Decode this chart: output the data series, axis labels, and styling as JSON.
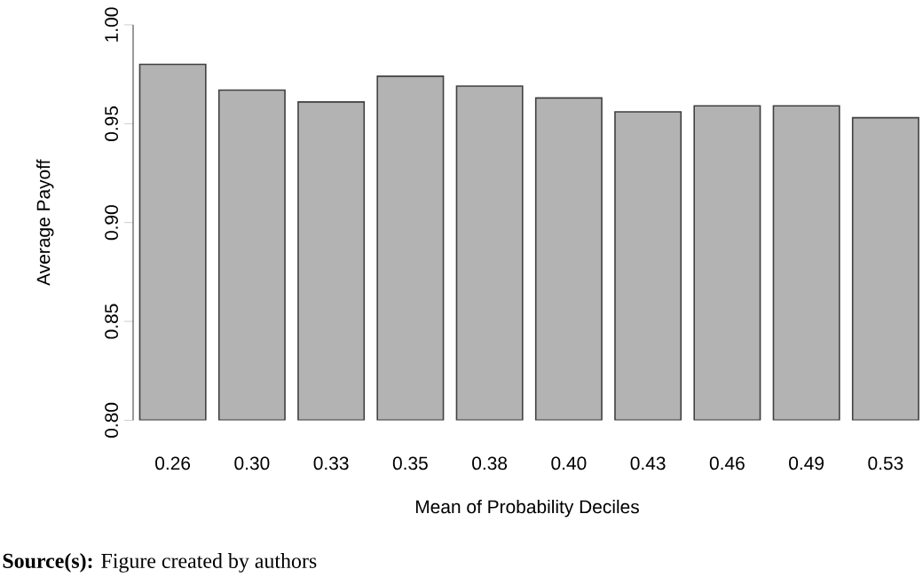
{
  "chart_data": {
    "type": "bar",
    "categories": [
      "0.26",
      "0.30",
      "0.33",
      "0.35",
      "0.38",
      "0.40",
      "0.43",
      "0.46",
      "0.49",
      "0.53"
    ],
    "values": [
      0.98,
      0.967,
      0.961,
      0.974,
      0.969,
      0.963,
      0.956,
      0.959,
      0.959,
      0.953
    ],
    "color": "#b3b3b3",
    "ylim": [
      0.8,
      1.0
    ],
    "yticks": [
      {
        "value": 0.8,
        "label": "0.80"
      },
      {
        "value": 0.85,
        "label": "0.85"
      },
      {
        "value": 0.9,
        "label": "0.90"
      },
      {
        "value": 0.95,
        "label": "0.95"
      },
      {
        "value": 1.0,
        "label": "1.00"
      }
    ],
    "xlabel": "Mean of Probability Deciles",
    "ylabel": "Average Payoff",
    "annotations": [
      "**Source(s):** Figure created by authors"
    ]
  }
}
